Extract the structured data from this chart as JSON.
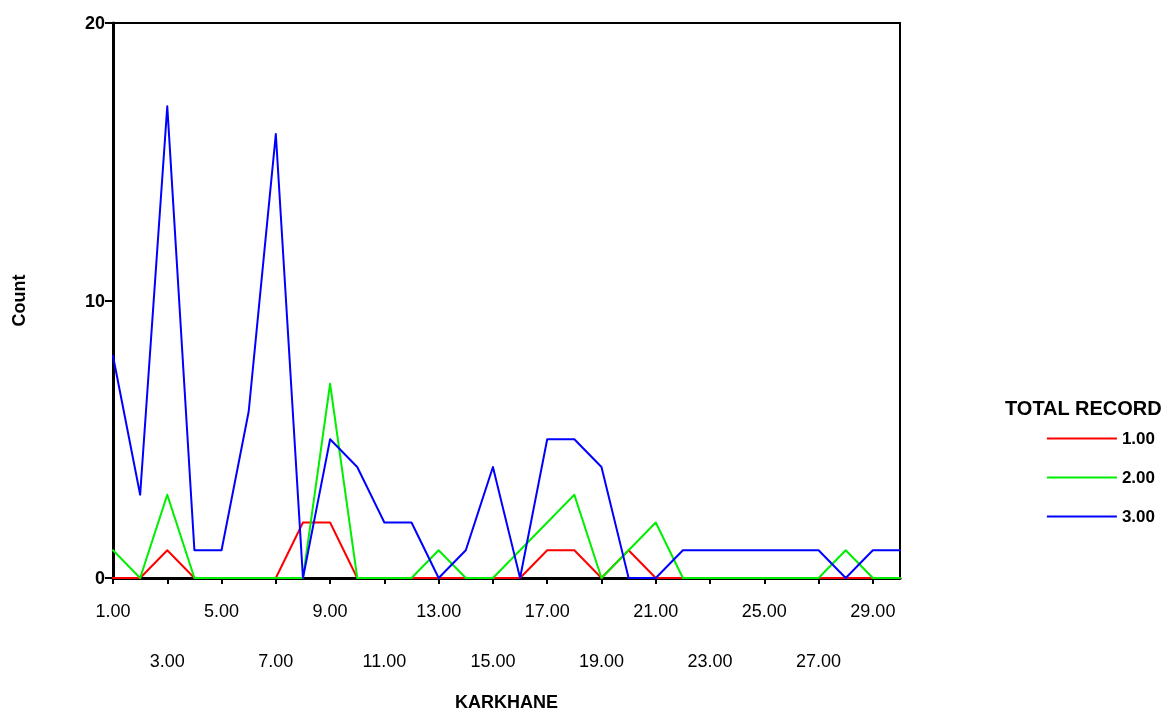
{
  "chart_data": {
    "type": "line",
    "xlabel": "KARKHANE",
    "ylabel": "Count",
    "legend_title": "TOTAL RECORD",
    "categories": [
      "1.00",
      null,
      "3.00",
      null,
      "5.00",
      null,
      "7.00",
      null,
      "9.00",
      null,
      "11.00",
      null,
      "13.00",
      null,
      "15.00",
      null,
      "17.00",
      null,
      "19.00",
      null,
      "21.00",
      null,
      "23.00",
      null,
      "25.00",
      null,
      "27.00",
      null,
      "29.00",
      null
    ],
    "series": [
      {
        "name": "1.00",
        "color": "#ff0000",
        "values": [
          0,
          0,
          1,
          0,
          0,
          0,
          0,
          2,
          2,
          0,
          0,
          0,
          0,
          0,
          0,
          0,
          1,
          1,
          0,
          1,
          0,
          0,
          0,
          0,
          0,
          0,
          0,
          0,
          0,
          0
        ]
      },
      {
        "name": "2.00",
        "color": "#00ee00",
        "values": [
          1,
          0,
          3,
          0,
          0,
          0,
          0,
          0,
          7,
          0,
          0,
          0,
          1,
          0,
          0,
          1,
          2,
          3,
          0,
          1,
          2,
          0,
          0,
          0,
          0,
          0,
          0,
          1,
          0,
          0
        ]
      },
      {
        "name": "3.00",
        "color": "#0000ff",
        "values": [
          8,
          3,
          17,
          1,
          1,
          6,
          16,
          0,
          5,
          4,
          2,
          2,
          0,
          1,
          4,
          0,
          5,
          5,
          4,
          0,
          0,
          1,
          1,
          1,
          1,
          1,
          1,
          0,
          1,
          1
        ]
      }
    ],
    "ylim": [
      0,
      20
    ],
    "yticks": [
      0,
      10,
      20
    ],
    "grid": false,
    "legend": "right",
    "marker": "none",
    "line_style": "solid"
  }
}
